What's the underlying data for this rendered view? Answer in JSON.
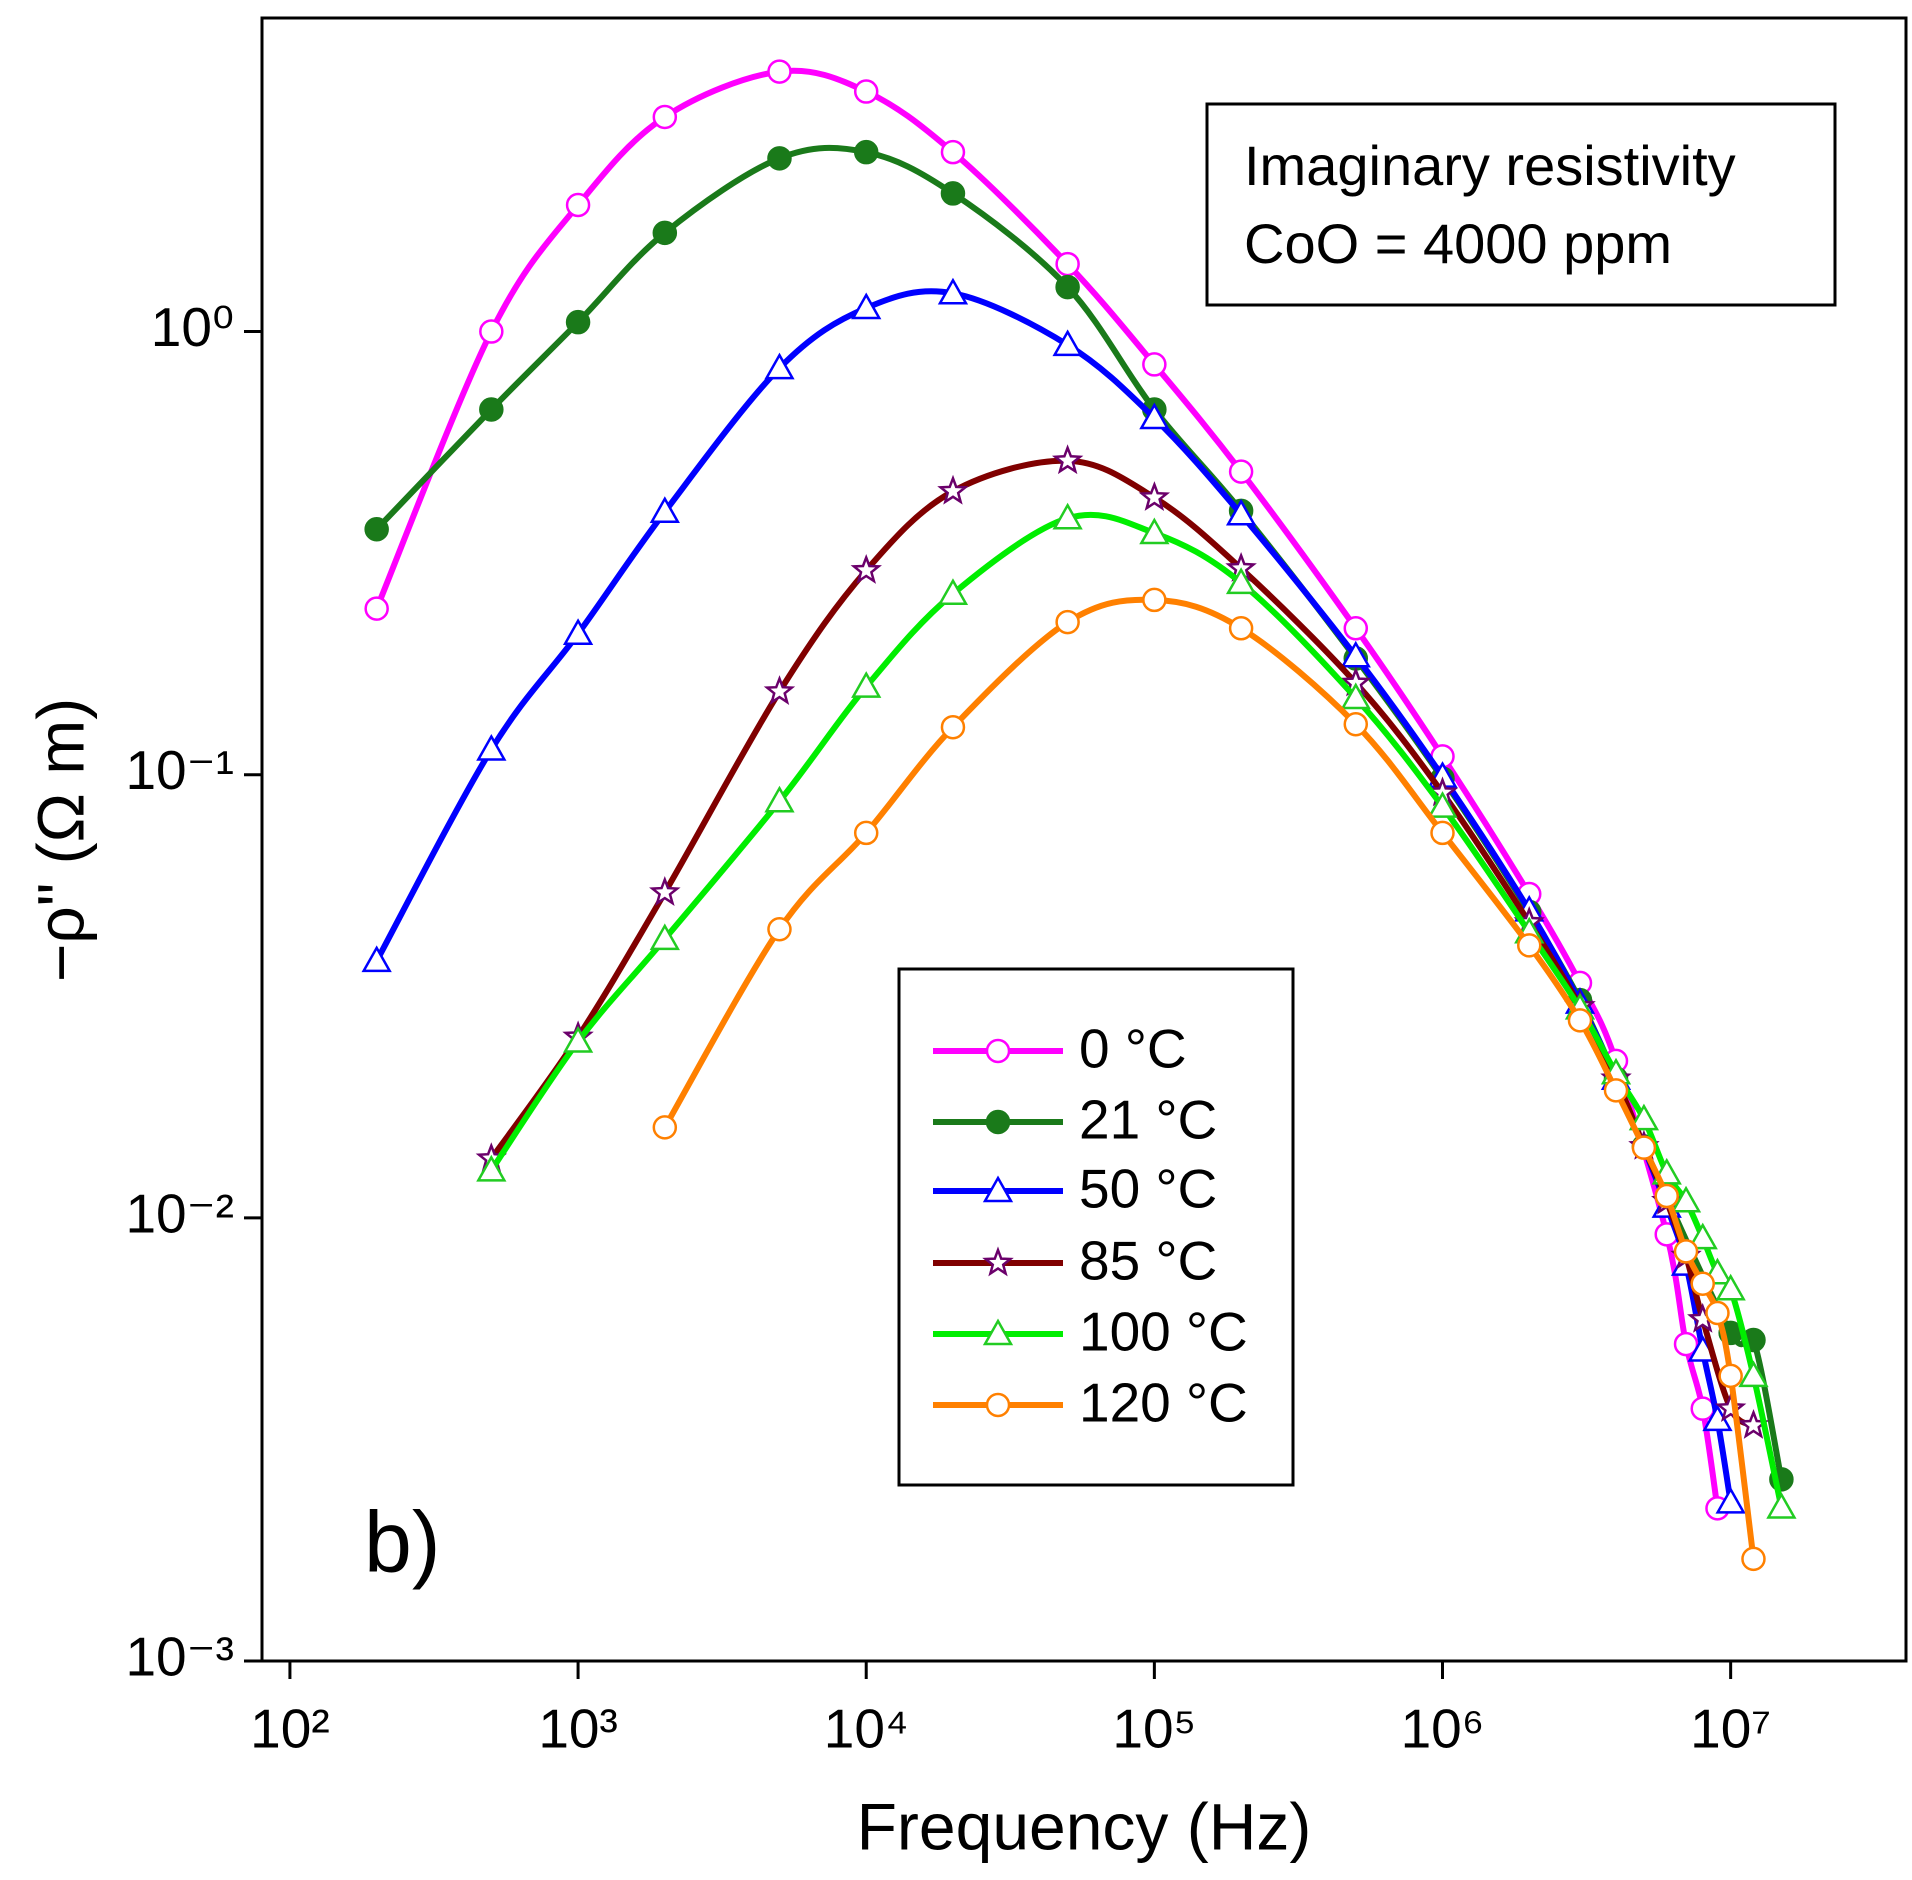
{
  "chart_data": {
    "type": "line",
    "xlabel": "Frequency (Hz)",
    "ylabel": "−ρ\" (Ω m)",
    "annotations": [
      "Imaginary resistivity",
      "CoO = 4000 ppm",
      "b)"
    ],
    "xscale": "log",
    "yscale": "log",
    "xlim": [
      80,
      40600000
    ],
    "ylim": [
      0.001,
      5.1
    ],
    "xticks": [
      {
        "value": 100,
        "label": "10²"
      },
      {
        "value": 1000,
        "label": "10³"
      },
      {
        "value": 10000,
        "label": "10⁴"
      },
      {
        "value": 100000,
        "label": "10⁵"
      },
      {
        "value": 1000000,
        "label": "10⁶"
      },
      {
        "value": 10000000,
        "label": "10⁷"
      }
    ],
    "yticks": [
      {
        "value": 0.001,
        "label": "10⁻³"
      },
      {
        "value": 0.01,
        "label": "10⁻²"
      },
      {
        "value": 0.1,
        "label": "10⁻¹"
      },
      {
        "value": 1,
        "label": "10⁰"
      }
    ],
    "series": [
      {
        "name": "0 °C",
        "color": "#ff00ff",
        "marker": "circle",
        "marker_fill": "#ffffff",
        "x": [
          200,
          500,
          1000,
          2000,
          5000,
          10000,
          20000,
          50000,
          100000,
          200000,
          500000,
          1000000,
          2000000,
          3000000,
          4000000,
          6000000,
          7000000,
          8000000,
          9000000
        ],
        "values": [
          0.237,
          1.0,
          1.93,
          3.05,
          3.86,
          3.48,
          2.54,
          1.42,
          0.843,
          0.483,
          0.214,
          0.11,
          0.0538,
          0.0339,
          0.0226,
          0.00918,
          0.00519,
          0.00371,
          0.00221
        ]
      },
      {
        "name": "21 °C",
        "color": "#1a7a1a",
        "marker": "circle",
        "marker_fill": "#1a7a1a",
        "x": [
          200,
          500,
          1000,
          2000,
          5000,
          10000,
          20000,
          50000,
          100000,
          200000,
          500000,
          1000000,
          2000000,
          3000000,
          4000000,
          5000000,
          10000000,
          12000000,
          15000000
        ],
        "values": [
          0.358,
          0.667,
          1.05,
          1.67,
          2.46,
          2.54,
          2.05,
          1.26,
          0.667,
          0.394,
          0.183,
          0.098,
          0.049,
          0.031,
          0.0206,
          0.0145,
          0.0055,
          0.0053,
          0.00257
        ]
      },
      {
        "name": "50 °C",
        "color": "#0000ff",
        "marker": "triangle",
        "marker_fill": "#ffffff",
        "x": [
          200,
          500,
          1000,
          2000,
          5000,
          10000,
          20000,
          50000,
          100000,
          200000,
          500000,
          1000000,
          2000000,
          3000000,
          4000000,
          6000000,
          7000000,
          8000000,
          9000000,
          10000000
        ],
        "values": [
          0.038,
          0.114,
          0.208,
          0.392,
          0.827,
          1.13,
          1.22,
          0.933,
          0.638,
          0.387,
          0.185,
          0.099,
          0.0494,
          0.0306,
          0.0206,
          0.0106,
          0.00784,
          0.00502,
          0.0035,
          0.00228
        ]
      },
      {
        "name": "85 °C",
        "color": "#800000",
        "marker": "star",
        "marker_fill": "#ffffff",
        "marker_stroke": "#6b006b",
        "x": [
          500,
          1000,
          2000,
          5000,
          10000,
          20000,
          50000,
          100000,
          200000,
          500000,
          1000000,
          2000000,
          3000000,
          4000000,
          5000000,
          6000000,
          7000000,
          8000000,
          10000000,
          12000000
        ],
        "values": [
          0.0136,
          0.0256,
          0.0542,
          0.154,
          0.289,
          0.436,
          0.511,
          0.422,
          0.292,
          0.161,
          0.091,
          0.0464,
          0.03,
          0.0206,
          0.0145,
          0.0109,
          0.0082,
          0.0059,
          0.00371,
          0.0034
        ]
      },
      {
        "name": "100 °C",
        "color": "#00ee00",
        "marker": "triangle",
        "marker_fill": "#ffffff",
        "marker_stroke": "#22cc22",
        "x": [
          500,
          1000,
          2000,
          5000,
          10000,
          20000,
          50000,
          100000,
          200000,
          500000,
          1000000,
          2000000,
          3000000,
          4000000,
          5000000,
          6000000,
          7000000,
          8000000,
          9000000,
          10000000,
          12000000,
          15000000
        ],
        "values": [
          0.0128,
          0.025,
          0.0426,
          0.0871,
          0.158,
          0.256,
          0.379,
          0.351,
          0.271,
          0.149,
          0.0847,
          0.0441,
          0.0297,
          0.0212,
          0.0167,
          0.0126,
          0.0109,
          0.009,
          0.0075,
          0.0069,
          0.0044,
          0.00222
        ]
      },
      {
        "name": "120 °C",
        "color": "#ff8000",
        "marker": "circle",
        "marker_fill": "#ffffff",
        "x": [
          2000,
          5000,
          10000,
          20000,
          50000,
          100000,
          200000,
          500000,
          1000000,
          2000000,
          3000000,
          4000000,
          5000000,
          6000000,
          7000000,
          8000000,
          9000000,
          10000000,
          12000000
        ],
        "values": [
          0.016,
          0.0448,
          0.0739,
          0.128,
          0.221,
          0.248,
          0.214,
          0.13,
          0.0739,
          0.0412,
          0.0279,
          0.0194,
          0.0144,
          0.0112,
          0.0084,
          0.0071,
          0.0061,
          0.0044,
          0.0017
        ]
      }
    ]
  }
}
